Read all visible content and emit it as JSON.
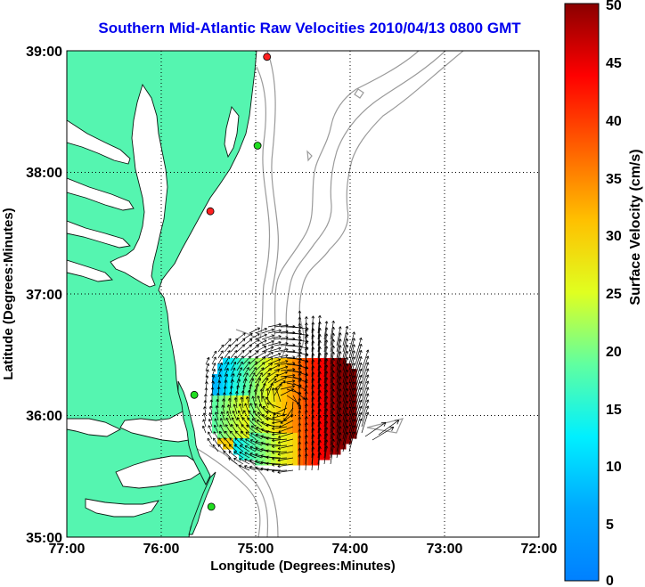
{
  "title": "Southern Mid-Atlantic Raw Velocities 2010/04/13 0800 GMT",
  "map": {
    "x_axis_label": "Longitude (Degrees:Minutes)",
    "y_axis_label": "Latitude (Degrees:Minutes)",
    "x_ticks": [
      "77:00",
      "76:00",
      "75:00",
      "74:00",
      "73:00",
      "72:00"
    ],
    "y_ticks": [
      "39:00",
      "38:00",
      "37:00",
      "36:00",
      "35:00"
    ],
    "lon_range": [
      -77,
      -72
    ],
    "lat_range": [
      35,
      39
    ],
    "land_color": "#55f5b0",
    "bathymetry_color": "#9a9a9a",
    "grid": true
  },
  "colorbar": {
    "label": "Surface Velocity (cm/s)",
    "ticks": [
      "50",
      "45",
      "40",
      "35",
      "30",
      "25",
      "20",
      "15",
      "10",
      "5",
      "0"
    ],
    "range": [
      0,
      50
    ],
    "colormap": "jet"
  },
  "stations": [
    {
      "lon": -74.88,
      "lat": 38.95,
      "color": "#ff2020"
    },
    {
      "lon": -74.98,
      "lat": 38.22,
      "color": "#20dd20"
    },
    {
      "lon": -75.48,
      "lat": 37.68,
      "color": "#ff2020"
    },
    {
      "lon": -75.65,
      "lat": 36.17,
      "color": "#20dd20"
    },
    {
      "lon": -75.47,
      "lat": 35.25,
      "color": "#20dd20"
    }
  ]
}
